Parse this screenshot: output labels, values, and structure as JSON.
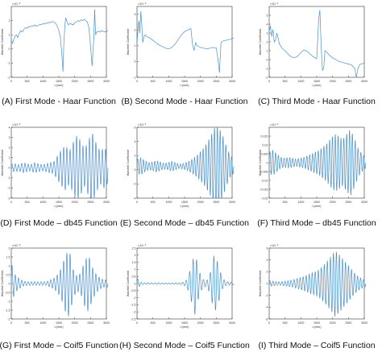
{
  "figure": {
    "chart_data": [
      {
        "id": "A",
        "type": "line",
        "caption": "(A) First Mode - Haar Function",
        "ylabel": "Wavelet Coefficient",
        "xlabel": "L(mm)",
        "exponent": "×10⁻³",
        "xlim": [
          0,
          3000
        ],
        "ylim": [
          -2,
          3
        ],
        "xticks": [
          0,
          500,
          1000,
          1500,
          2000,
          2500,
          3000
        ],
        "yticks": [
          -2,
          -1,
          0,
          1,
          2
        ],
        "series": [
          {
            "color": "#4a90c8",
            "x": [
              0,
              40,
              80,
              120,
              160,
              200,
              250,
              300,
              350,
              400,
              450,
              500,
              550,
              600,
              650,
              700,
              750,
              800,
              850,
              900,
              950,
              1000,
              1050,
              1100,
              1150,
              1200,
              1250,
              1300,
              1350,
              1400,
              1450,
              1500,
              1550,
              1600,
              1630,
              1660,
              1700,
              1720,
              1760,
              1800,
              1850,
              1900,
              1950,
              2000,
              2050,
              2100,
              2150,
              2200,
              2250,
              2300,
              2350,
              2400,
              2450,
              2500,
              2550,
              2600,
              2630,
              2660,
              2700,
              2750,
              2800,
              2850,
              2900,
              2950,
              3000,
              3050
            ],
            "y": [
              0.6,
              0.4,
              0.7,
              0.9,
              1.0,
              0.8,
              1.1,
              1.3,
              1.2,
              1.4,
              1.5,
              1.45,
              1.6,
              1.55,
              1.65,
              1.6,
              1.7,
              1.6,
              1.65,
              1.75,
              1.7,
              1.8,
              1.75,
              1.85,
              1.8,
              1.9,
              1.85,
              1.95,
              1.9,
              1.8,
              1.6,
              1.3,
              0.8,
              -0.5,
              -1.6,
              0.5,
              1.9,
              2.2,
              1.9,
              1.7,
              1.8,
              1.75,
              1.7,
              1.85,
              1.9,
              2.0,
              1.95,
              2.05,
              2.0,
              2.1,
              2.0,
              1.9,
              1.5,
              0.2,
              -1.2,
              0.6,
              2.8,
              1.0,
              1.2,
              1.25,
              1.2,
              1.3,
              1.25,
              1.2,
              1.25,
              1.3
            ]
          }
        ]
      },
      {
        "id": "B",
        "type": "line",
        "caption": "(B) Second Mode - Haar Function",
        "ylabel": "Wavelet Coefficient",
        "xlabel": "L(mm)",
        "exponent": "×10⁻³",
        "xlim": [
          0,
          3000
        ],
        "ylim": [
          -1,
          3.5
        ],
        "xticks": [
          0,
          500,
          1000,
          1500,
          2000,
          2500,
          3000
        ],
        "yticks": [
          -1,
          0,
          1,
          2,
          3
        ],
        "series": [
          {
            "color": "#4a90c8",
            "x": [
              0,
              30,
              60,
              90,
              120,
              150,
              180,
              220,
              260,
              300,
              400,
              500,
              600,
              700,
              800,
              900,
              1000,
              1100,
              1200,
              1300,
              1400,
              1500,
              1600,
              1700,
              1750,
              1800,
              1850,
              1900,
              2000,
              2100,
              2200,
              2300,
              2400,
              2500,
              2550,
              2600,
              2650,
              2700,
              2800,
              2900,
              3000,
              3050
            ],
            "y": [
              1.2,
              2.0,
              2.6,
              1.8,
              3.2,
              2.4,
              1.2,
              1.6,
              1.7,
              1.6,
              1.5,
              1.35,
              1.2,
              1.05,
              0.95,
              0.85,
              0.8,
              0.9,
              1.1,
              1.4,
              1.7,
              1.9,
              2.0,
              2.1,
              1.1,
              0.7,
              1.2,
              1.0,
              0.9,
              0.85,
              0.8,
              0.85,
              0.9,
              0.85,
              0.2,
              -0.7,
              1.2,
              1.3,
              1.35,
              1.4,
              1.45,
              1.5
            ]
          }
        ]
      },
      {
        "id": "C",
        "type": "line",
        "caption": "(C) Third Mode - Haar Function",
        "ylabel": "Wavelet Coefficient",
        "xlabel": "L(mm)",
        "exponent": "×10⁻³",
        "xlim": [
          0,
          3000
        ],
        "ylim": [
          -2,
          6
        ],
        "xticks": [
          0,
          500,
          1000,
          1500,
          2000,
          2500,
          3000
        ],
        "yticks": [
          -2,
          -1,
          0,
          1,
          2,
          3,
          4,
          5
        ],
        "series": [
          {
            "color": "#4a90c8",
            "x": [
              0,
              40,
              80,
              120,
              160,
              200,
              240,
              280,
              320,
              400,
              500,
              600,
              700,
              800,
              900,
              1000,
              1100,
              1200,
              1300,
              1400,
              1500,
              1560,
              1600,
              1640,
              1680,
              1720,
              1760,
              1800,
              1900,
              2000,
              2100,
              2200,
              2300,
              2400,
              2500,
              2600,
              2700,
              2750,
              2800,
              2850,
              2900,
              3000
            ],
            "y": [
              3.2,
              3.8,
              2.6,
              3.4,
              2.0,
              2.2,
              3.0,
              2.5,
              1.8,
              1.3,
              1.0,
              0.6,
              0.3,
              0.2,
              0.4,
              0.8,
              1.1,
              0.9,
              0.6,
              0.3,
              0.1,
              4.5,
              5.6,
              1.5,
              -1.2,
              -1.0,
              1.0,
              0.9,
              0.5,
              0.2,
              0.0,
              -0.2,
              -0.3,
              -0.4,
              -0.5,
              -0.6,
              -1.0,
              -2.0,
              -1.0,
              -0.6,
              -0.5,
              -0.4
            ]
          }
        ]
      },
      {
        "id": "D",
        "type": "line",
        "caption": "(D) First Mode – db45 Function",
        "ylabel": "Wavelet Coefficient",
        "xlabel": "L(mm)",
        "exponent": "×10⁻³",
        "xlim": [
          0,
          3000
        ],
        "ylim": [
          -3,
          4
        ],
        "xticks": [
          0,
          500,
          1000,
          1500,
          2000,
          2500,
          3000
        ],
        "yticks": [
          -3,
          -2,
          -1,
          0,
          1,
          2,
          3,
          4
        ],
        "osc": {
          "amp": [
            0.35,
            0.4,
            0.3,
            0.5,
            0.4,
            0.3,
            0.5,
            0.4,
            0.3,
            0.4,
            0.5,
            0.6,
            1.2,
            1.8,
            2.2,
            1.6,
            2.5,
            3.2,
            2.6,
            1.8,
            2.8,
            3.4,
            2.4,
            1.6,
            2.0,
            1.5
          ],
          "cycles": 30,
          "offset": 0,
          "color": "#4a90c8"
        }
      },
      {
        "id": "E",
        "type": "line",
        "caption": "(E) Second Mode – db45 Function",
        "ylabel": "Wavelet Coefficient",
        "xlabel": "L(mm)",
        "exponent": "×10⁻³",
        "xlim": [
          0,
          3000
        ],
        "ylim": [
          -4,
          6
        ],
        "xticks": [
          0,
          500,
          1000,
          1500,
          2000,
          2500,
          3000
        ],
        "yticks": [
          -4,
          -2,
          0,
          2,
          4,
          6
        ],
        "osc": {
          "amp": [
            1.0,
            1.2,
            0.8,
            0.5,
            0.6,
            0.8,
            0.6,
            0.4,
            0.5,
            0.7,
            0.5,
            0.3,
            0.4,
            0.6,
            0.9,
            1.3,
            1.8,
            2.4,
            3.2,
            4.2,
            5.4,
            5.6,
            4.6,
            3.0,
            1.6,
            1.0
          ],
          "cycles": 34,
          "offset": 0.5,
          "color": "#4a90c8"
        }
      },
      {
        "id": "F",
        "type": "line",
        "caption": "(F) Third Mode – db45 Function",
        "ylabel": "Wavelet Coefficient",
        "xlabel": "L(mm)",
        "exponent": "×10⁻³",
        "xlim": [
          0,
          3000
        ],
        "ylim": [
          -0.02,
          0.02
        ],
        "xticks": [
          0,
          500,
          1000,
          1500,
          2000,
          2500,
          3000
        ],
        "yticks": [
          -0.02,
          -0.015,
          -0.01,
          -0.005,
          0,
          0.005,
          0.01,
          0.015
        ],
        "osc": {
          "amp": [
            0.006,
            0.007,
            0.005,
            0.003,
            0.0025,
            0.003,
            0.0025,
            0.002,
            0.0025,
            0.003,
            0.004,
            0.005,
            0.006,
            0.007,
            0.009,
            0.011,
            0.014,
            0.016,
            0.015,
            0.013,
            0.016,
            0.019,
            0.014,
            0.008,
            0.005,
            0.003
          ],
          "cycles": 34,
          "offset": 0,
          "color": "#4a90c8"
        }
      },
      {
        "id": "G",
        "type": "line",
        "caption": "(G) First Mode – Coif5 Function",
        "ylabel": "Wavelet Coefficient",
        "xlabel": "L(mm)",
        "exponent": "×10⁻³",
        "xlim": [
          0,
          3000
        ],
        "ylim": [
          -2,
          2
        ],
        "xticks": [
          0,
          500,
          1000,
          1500,
          2000,
          2500,
          3000
        ],
        "yticks": [
          -2,
          -1.5,
          -1,
          -0.5,
          0,
          0.5,
          1,
          1.5,
          2
        ],
        "osc": {
          "amp": [
            1.1,
            0.5,
            0.3,
            0.15,
            0.1,
            0.1,
            0.1,
            0.1,
            0.1,
            0.1,
            0.2,
            0.3,
            0.5,
            0.9,
            1.6,
            1.9,
            0.8,
            0.4,
            0.6,
            1.3,
            1.6,
            0.9,
            0.5,
            0.3,
            0.2,
            0.2
          ],
          "cycles": 30,
          "offset": 0,
          "color": "#4a90c8"
        }
      },
      {
        "id": "H",
        "type": "line",
        "caption": "(H) Second Mode – Coif5 Function",
        "ylabel": "Wavelet Coefficient",
        "xlabel": "L(mm)",
        "exponent": "×10⁻³",
        "xlim": [
          0,
          3000
        ],
        "ylim": [
          -2.5,
          2.5
        ],
        "xticks": [
          0,
          500,
          1000,
          1500,
          2000,
          2500,
          3000
        ],
        "yticks": [
          -2.5,
          -2,
          -1.5,
          -1,
          -0.5,
          0,
          0.5,
          1,
          1.5,
          2,
          2.5
        ],
        "osc": {
          "amp": [
            0.4,
            0.1,
            0.05,
            0.05,
            0.05,
            0.05,
            0.05,
            0.05,
            0.05,
            0.05,
            0.05,
            0.05,
            0.1,
            0.3,
            1.2,
            2.2,
            0.9,
            0.3,
            0.2,
            0.8,
            2.1,
            1.4,
            0.4,
            0.15,
            0.1,
            0.1
          ],
          "cycles": 28,
          "offset": 0,
          "color": "#4a90c8"
        }
      },
      {
        "id": "I",
        "type": "line",
        "caption": "(I) Third Mode – Coif5 Function",
        "ylabel": "Wavelet Coefficient",
        "xlabel": "L(mm)",
        "exponent": "×10⁻³",
        "xlim": [
          0,
          3000
        ],
        "ylim": [
          -6,
          6
        ],
        "xticks": [
          0,
          500,
          1000,
          1500,
          2000,
          2500,
          3000
        ],
        "yticks": [
          -6,
          -4,
          -2,
          0,
          2,
          4,
          6
        ],
        "osc": {
          "amp": [
            0.5,
            0.4,
            0.3,
            0.3,
            0.4,
            0.5,
            0.6,
            0.8,
            1.0,
            1.2,
            1.5,
            1.8,
            2.0,
            2.4,
            3.0,
            3.8,
            4.6,
            5.6,
            5.0,
            4.2,
            3.4,
            2.6,
            1.8,
            1.2,
            0.8,
            0.5
          ],
          "cycles": 32,
          "offset": 0,
          "color": "#4a90c8"
        }
      }
    ]
  }
}
